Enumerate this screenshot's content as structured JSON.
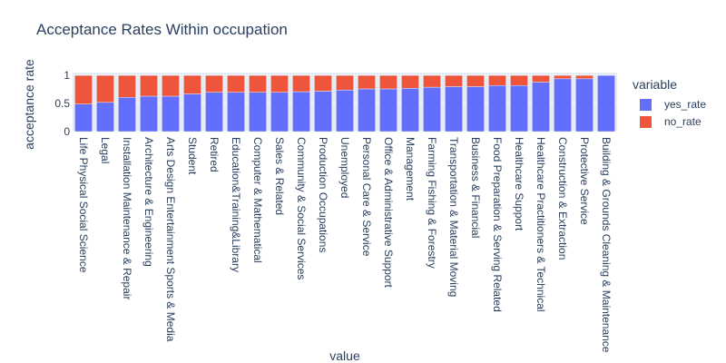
{
  "chart_data": {
    "type": "bar",
    "stacked": true,
    "title": "Acceptance Rates Within occupation",
    "xlabel": "value",
    "ylabel": "acceptance rate",
    "ylim": [
      0,
      1.05
    ],
    "yticks": [
      0,
      0.5,
      1
    ],
    "ytick_labels": [
      "0",
      "0.5",
      "1"
    ],
    "legend_title": "variable",
    "legend_position": "right",
    "categories": [
      "Life Physical Social Science",
      "Legal",
      "Installation Maintenance & Repair",
      "Architecture & Engineering",
      "Arts Design Entertainment Sports & Media",
      "Student",
      "Retired",
      "Education&Training&Library",
      "Computer & Mathematical",
      "Sales & Related",
      "Community & Social Services",
      "Production Occupations",
      "Unemployed",
      "Personal Care & Service",
      "Office & Administrative Support",
      "Management",
      "Farming Fishing & Forestry",
      "Transportation & Material Moving",
      "Business & Financial",
      "Food Preparation & Serving Related",
      "Healthcare Support",
      "Healthcare Practitioners & Technical",
      "Construction & Extraction",
      "Protective Service",
      "Building & Grounds Cleaning & Maintenance"
    ],
    "series": [
      {
        "name": "yes_rate",
        "color": "#636efa",
        "values": [
          0.49,
          0.52,
          0.61,
          0.63,
          0.63,
          0.67,
          0.7,
          0.7,
          0.7,
          0.7,
          0.71,
          0.72,
          0.74,
          0.76,
          0.76,
          0.77,
          0.79,
          0.8,
          0.8,
          0.82,
          0.82,
          0.88,
          0.94,
          0.94,
          1.0
        ]
      },
      {
        "name": "no_rate",
        "color": "#ef553b",
        "values": [
          0.51,
          0.48,
          0.39,
          0.37,
          0.37,
          0.33,
          0.3,
          0.3,
          0.3,
          0.3,
          0.29,
          0.28,
          0.26,
          0.24,
          0.24,
          0.23,
          0.21,
          0.2,
          0.2,
          0.18,
          0.18,
          0.12,
          0.06,
          0.06,
          0.0
        ]
      }
    ]
  }
}
